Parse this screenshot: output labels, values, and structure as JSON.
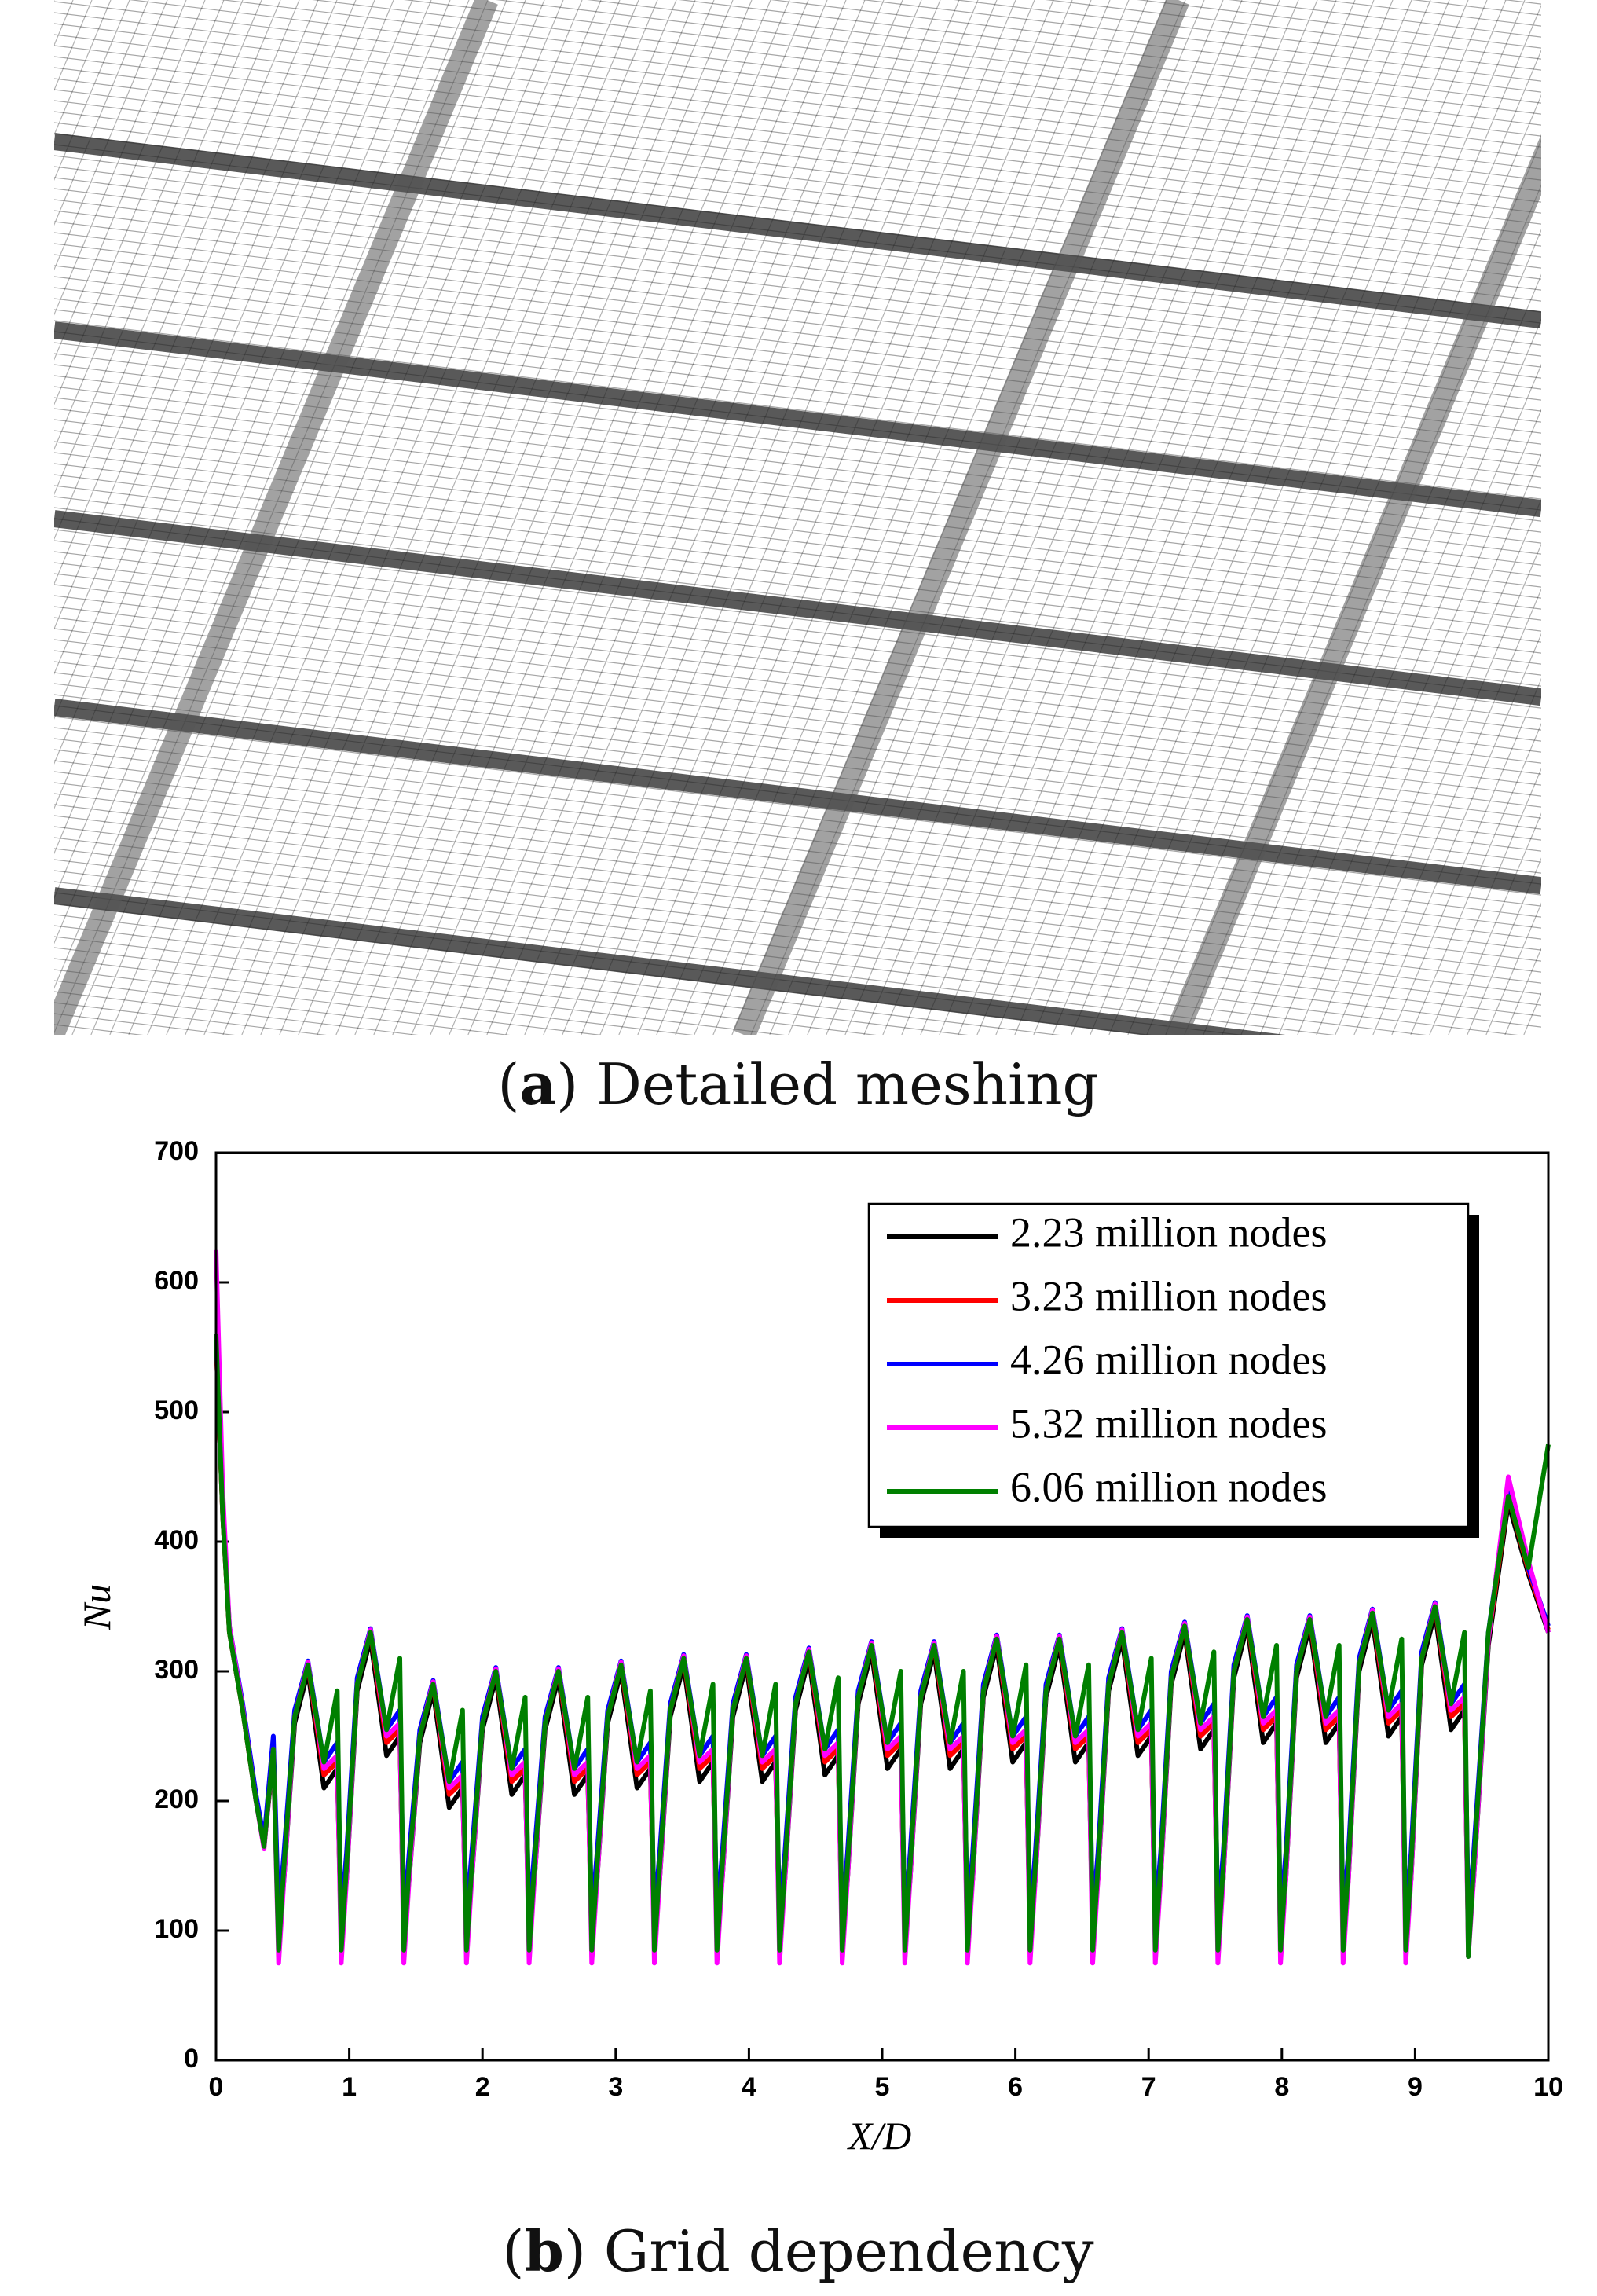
{
  "caption_a": {
    "open": "(",
    "label": "a",
    "text": ") Detailed meshing"
  },
  "caption_b": {
    "open": "(",
    "label": "b",
    "text": ") Grid dependency"
  },
  "chart_data": {
    "type": "line",
    "xlabel": "X/D",
    "ylabel": "Nu",
    "xlim": [
      0,
      10
    ],
    "ylim": [
      0,
      700
    ],
    "xticks": [
      0,
      1,
      2,
      3,
      4,
      5,
      6,
      7,
      8,
      9,
      10
    ],
    "yticks": [
      0,
      100,
      200,
      300,
      400,
      500,
      600,
      700
    ],
    "legend": "upper right",
    "x": [
      0,
      0.05,
      0.1,
      0.2,
      0.3,
      0.36,
      0.43,
      0.47,
      0.51,
      0.59,
      0.69,
      0.81,
      0.91,
      0.94,
      0.98,
      1.06,
      1.16,
      1.28,
      1.38,
      1.41,
      1.45,
      1.53,
      1.63,
      1.75,
      1.85,
      1.88,
      1.92,
      2.0,
      2.1,
      2.22,
      2.32,
      2.35,
      2.39,
      2.47,
      2.57,
      2.69,
      2.79,
      2.82,
      2.86,
      2.94,
      3.04,
      3.16,
      3.26,
      3.29,
      3.33,
      3.41,
      3.51,
      3.63,
      3.73,
      3.76,
      3.8,
      3.88,
      3.98,
      4.1,
      4.2,
      4.23,
      4.27,
      4.35,
      4.45,
      4.57,
      4.67,
      4.7,
      4.74,
      4.82,
      4.92,
      5.04,
      5.14,
      5.17,
      5.21,
      5.29,
      5.39,
      5.51,
      5.61,
      5.64,
      5.68,
      5.76,
      5.86,
      5.98,
      6.08,
      6.11,
      6.15,
      6.23,
      6.33,
      6.45,
      6.55,
      6.58,
      6.62,
      6.7,
      6.8,
      6.92,
      7.02,
      7.05,
      7.09,
      7.17,
      7.27,
      7.39,
      7.49,
      7.52,
      7.56,
      7.64,
      7.74,
      7.86,
      7.96,
      7.99,
      8.03,
      8.11,
      8.21,
      8.33,
      8.43,
      8.46,
      8.5,
      8.58,
      8.68,
      8.8,
      8.9,
      8.93,
      8.97,
      9.05,
      9.15,
      9.27,
      9.37,
      9.4,
      9.44,
      9.55,
      9.7,
      9.85,
      10
    ],
    "series": [
      {
        "name": "2.23 million nodes",
        "color": "#000000",
        "values": [
          555,
          420,
          330,
          270,
          200,
          165,
          235,
          95,
          140,
          260,
          300,
          210,
          225,
          95,
          140,
          285,
          325,
          235,
          250,
          95,
          140,
          245,
          285,
          195,
          210,
          95,
          140,
          255,
          295,
          205,
          220,
          95,
          140,
          255,
          295,
          205,
          220,
          95,
          140,
          260,
          300,
          210,
          225,
          95,
          140,
          265,
          305,
          215,
          230,
          95,
          140,
          265,
          305,
          215,
          230,
          95,
          140,
          270,
          310,
          220,
          235,
          95,
          140,
          275,
          315,
          225,
          240,
          95,
          140,
          275,
          315,
          225,
          240,
          95,
          140,
          280,
          320,
          230,
          245,
          95,
          140,
          280,
          320,
          230,
          245,
          95,
          140,
          285,
          325,
          235,
          250,
          95,
          140,
          290,
          330,
          240,
          255,
          95,
          140,
          295,
          335,
          245,
          260,
          95,
          140,
          295,
          335,
          245,
          260,
          95,
          140,
          300,
          340,
          250,
          265,
          95,
          140,
          305,
          345,
          255,
          270,
          95,
          140,
          320,
          430,
          375,
          330
        ]
      },
      {
        "name": "3.23 million nodes",
        "color": "#ff0000",
        "values": [
          555,
          420,
          330,
          270,
          200,
          165,
          238,
          90,
          145,
          265,
          305,
          220,
          230,
          90,
          145,
          290,
          330,
          245,
          255,
          90,
          145,
          250,
          290,
          205,
          215,
          90,
          145,
          260,
          300,
          215,
          225,
          90,
          145,
          260,
          300,
          215,
          225,
          90,
          145,
          265,
          305,
          220,
          230,
          90,
          145,
          270,
          310,
          225,
          235,
          90,
          145,
          270,
          310,
          225,
          235,
          90,
          145,
          275,
          315,
          230,
          240,
          90,
          145,
          280,
          320,
          235,
          245,
          90,
          145,
          280,
          320,
          235,
          245,
          90,
          145,
          285,
          325,
          240,
          250,
          90,
          145,
          285,
          325,
          240,
          250,
          90,
          145,
          290,
          330,
          245,
          255,
          90,
          145,
          295,
          335,
          250,
          260,
          90,
          145,
          300,
          340,
          255,
          265,
          90,
          145,
          300,
          340,
          255,
          265,
          90,
          145,
          305,
          345,
          260,
          270,
          90,
          145,
          310,
          350,
          265,
          275,
          90,
          145,
          325,
          435,
          378,
          332
        ]
      },
      {
        "name": "4.26 million nodes",
        "color": "#0000ff",
        "values": [
          560,
          425,
          335,
          275,
          205,
          170,
          250,
          110,
          160,
          270,
          308,
          230,
          245,
          110,
          160,
          295,
          333,
          255,
          270,
          110,
          160,
          255,
          293,
          215,
          230,
          110,
          160,
          265,
          303,
          225,
          240,
          110,
          160,
          265,
          303,
          225,
          240,
          110,
          160,
          270,
          308,
          230,
          245,
          110,
          160,
          275,
          313,
          235,
          250,
          110,
          160,
          275,
          313,
          235,
          250,
          110,
          160,
          280,
          318,
          240,
          255,
          110,
          160,
          285,
          323,
          245,
          260,
          110,
          160,
          285,
          323,
          245,
          260,
          110,
          160,
          290,
          328,
          250,
          265,
          110,
          160,
          290,
          328,
          250,
          265,
          110,
          160,
          295,
          333,
          255,
          270,
          110,
          160,
          300,
          338,
          260,
          275,
          110,
          160,
          305,
          343,
          265,
          280,
          110,
          160,
          305,
          343,
          265,
          280,
          110,
          160,
          310,
          348,
          270,
          285,
          110,
          160,
          315,
          353,
          275,
          290,
          110,
          160,
          330,
          440,
          380,
          335
        ]
      },
      {
        "name": "5.32 million nodes",
        "color": "#ff00ff",
        "values": [
          625,
          440,
          335,
          272,
          200,
          163,
          240,
          75,
          140,
          265,
          307,
          225,
          235,
          75,
          140,
          290,
          332,
          250,
          260,
          75,
          140,
          250,
          292,
          210,
          220,
          75,
          140,
          260,
          302,
          220,
          230,
          75,
          140,
          260,
          302,
          220,
          230,
          75,
          140,
          265,
          307,
          225,
          235,
          75,
          140,
          270,
          312,
          230,
          240,
          75,
          140,
          270,
          312,
          230,
          240,
          75,
          140,
          275,
          317,
          235,
          245,
          75,
          140,
          280,
          322,
          240,
          250,
          75,
          140,
          280,
          322,
          240,
          250,
          75,
          140,
          285,
          327,
          245,
          255,
          75,
          140,
          285,
          327,
          245,
          255,
          75,
          140,
          290,
          332,
          250,
          260,
          75,
          140,
          295,
          337,
          255,
          265,
          75,
          140,
          300,
          342,
          260,
          270,
          75,
          140,
          300,
          342,
          260,
          270,
          75,
          140,
          305,
          347,
          265,
          275,
          75,
          140,
          310,
          352,
          270,
          280,
          80,
          140,
          325,
          450,
          385,
          330
        ]
      },
      {
        "name": "6.06 million nodes",
        "color": "#008000",
        "values": [
          560,
          420,
          330,
          270,
          200,
          165,
          240,
          85,
          150,
          265,
          305,
          230,
          285,
          85,
          150,
          290,
          330,
          255,
          310,
          85,
          150,
          250,
          290,
          215,
          270,
          85,
          150,
          260,
          300,
          225,
          280,
          85,
          150,
          260,
          300,
          225,
          280,
          85,
          150,
          265,
          305,
          230,
          285,
          85,
          150,
          270,
          310,
          235,
          290,
          85,
          150,
          270,
          310,
          235,
          290,
          85,
          150,
          275,
          315,
          240,
          295,
          85,
          150,
          280,
          320,
          245,
          300,
          85,
          150,
          280,
          320,
          245,
          300,
          85,
          150,
          285,
          325,
          250,
          305,
          85,
          150,
          285,
          325,
          250,
          305,
          85,
          150,
          290,
          330,
          255,
          310,
          85,
          150,
          295,
          335,
          260,
          315,
          85,
          150,
          300,
          340,
          265,
          320,
          85,
          150,
          300,
          340,
          265,
          320,
          85,
          150,
          305,
          345,
          270,
          325,
          85,
          150,
          310,
          350,
          275,
          330,
          80,
          150,
          330,
          435,
          380,
          475
        ]
      }
    ]
  }
}
